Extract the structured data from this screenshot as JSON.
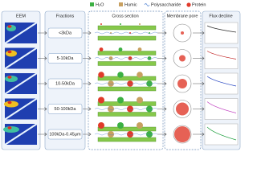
{
  "header": {
    "eem": "EEM",
    "fractions": "Fractions",
    "cross_section": "Cross section",
    "membrane_pore": "Membrane pore",
    "flux_decline": "Flux decline"
  },
  "legend": [
    "H₂O",
    "Humic",
    "Polysaccharide",
    "Protein"
  ],
  "fractions": [
    "<3kDa",
    "5-10kDa",
    "10-50kDa",
    "50-100kDa",
    "100kDa-0.45μm"
  ]
}
